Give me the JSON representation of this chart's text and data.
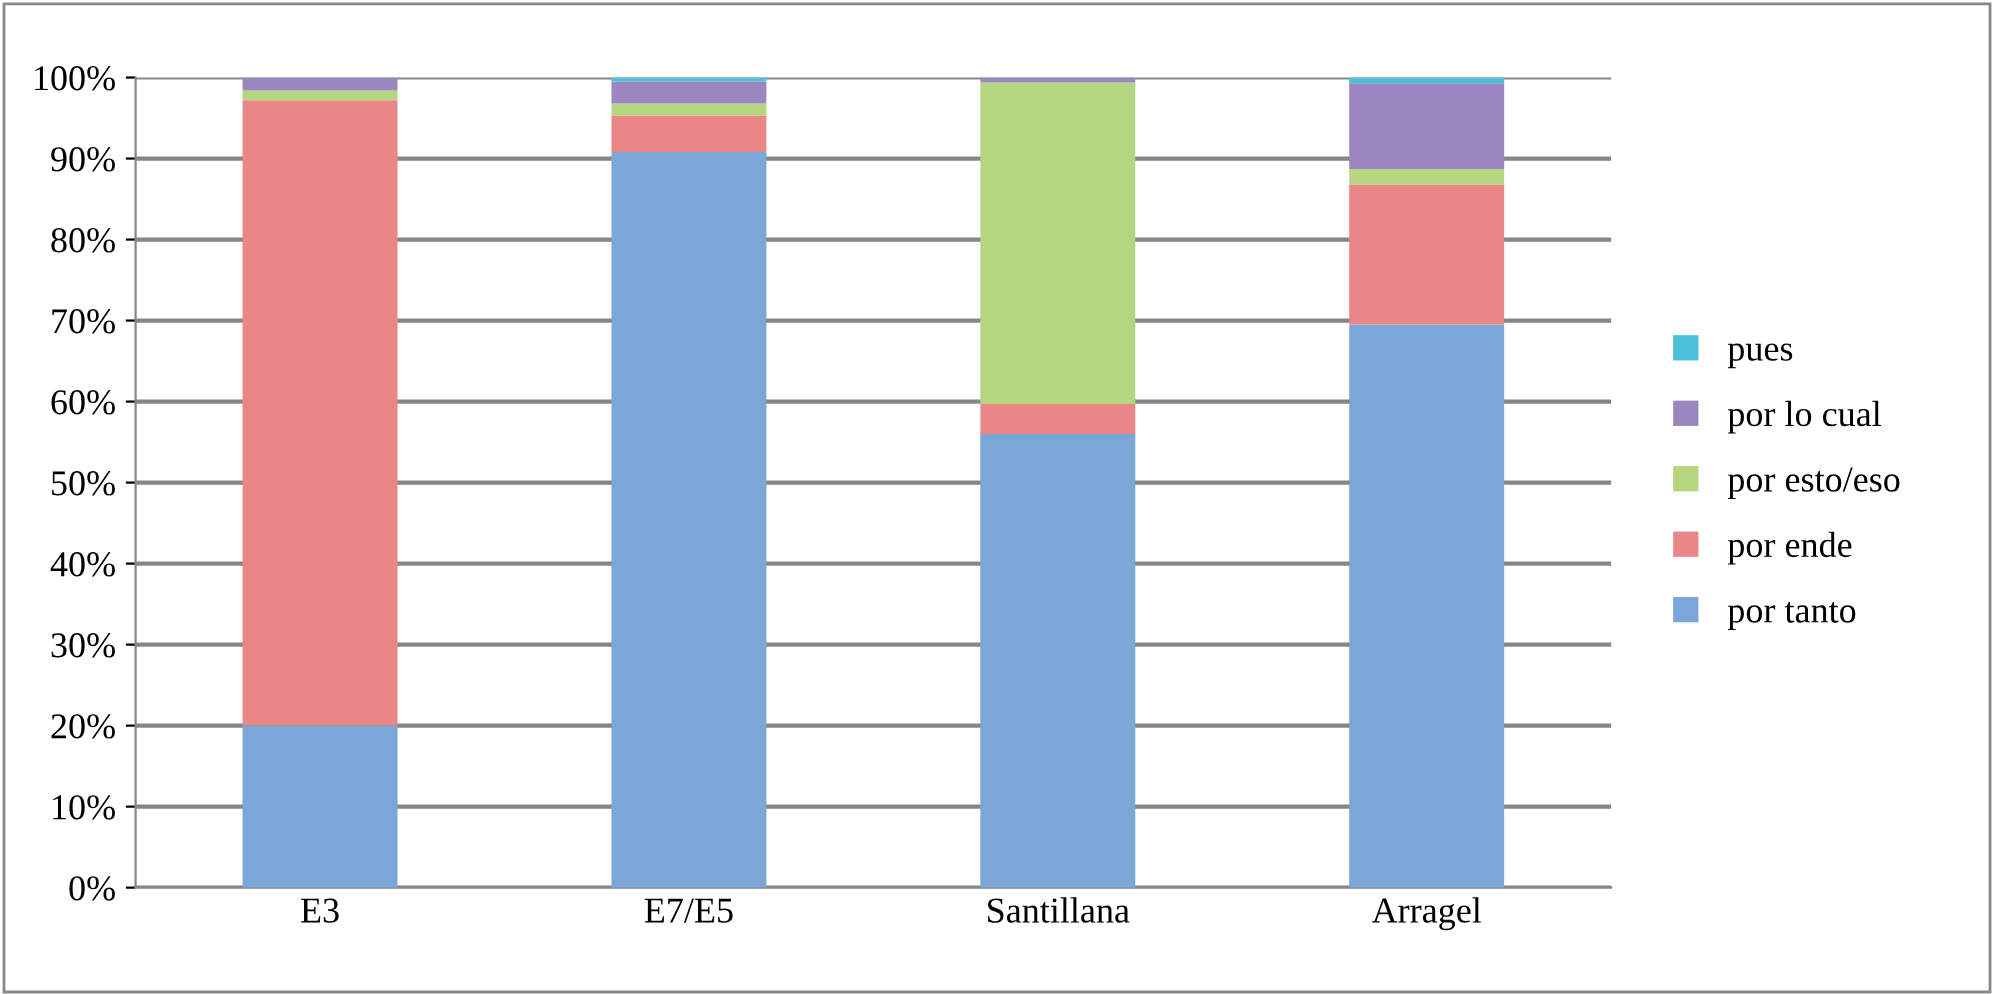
{
  "chart_data": {
    "type": "bar",
    "stacked": true,
    "categories": [
      "E3",
      "E7/E5",
      "Santillana",
      "Arragel"
    ],
    "series": [
      {
        "name": "por tanto",
        "color": "#7aa6d8",
        "values": [
          20,
          90.8,
          56,
          69.5
        ]
      },
      {
        "name": "por ende",
        "color": "#e98686",
        "values": [
          77.2,
          4.5,
          3.7,
          17.3
        ]
      },
      {
        "name": "por esto/eso",
        "color": "#b5d67f",
        "values": [
          1.2,
          1.5,
          39.7,
          1.9
        ]
      },
      {
        "name": "por lo cual",
        "color": "#9b86c0",
        "values": [
          1.6,
          2.7,
          0.6,
          10.6
        ]
      },
      {
        "name": "pues",
        "color": "#4bc0d9",
        "values": [
          0,
          0.5,
          0,
          0.7
        ]
      }
    ],
    "ylim": [
      0,
      100
    ],
    "yticks": [
      {
        "value": 0,
        "label": "0%"
      },
      {
        "value": 10,
        "label": "10%"
      },
      {
        "value": 20,
        "label": "20%"
      },
      {
        "value": 30,
        "label": "30%"
      },
      {
        "value": 40,
        "label": "40%"
      },
      {
        "value": 50,
        "label": "50%"
      },
      {
        "value": 60,
        "label": "60%"
      },
      {
        "value": 70,
        "label": "70%"
      },
      {
        "value": 80,
        "label": "80%"
      },
      {
        "value": 90,
        "label": "90%"
      },
      {
        "value": 100,
        "label": "100%"
      }
    ],
    "grid": "y",
    "legend": "right"
  }
}
